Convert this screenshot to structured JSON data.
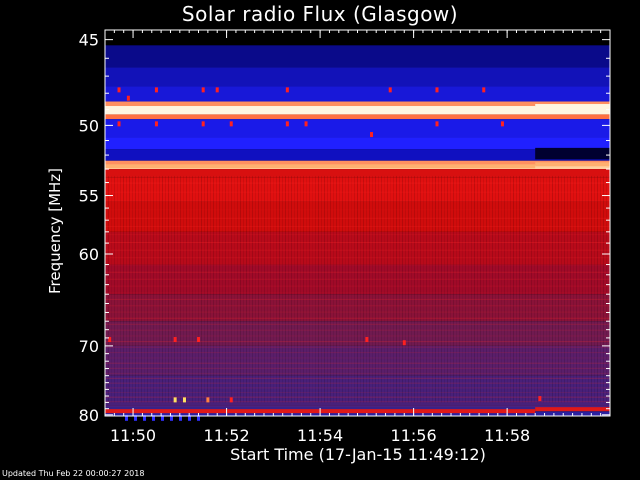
{
  "page": {
    "footer": "Updated Thu Feb 22 00:00:27 2018"
  },
  "chart_data": {
    "type": "heatmap",
    "title": "Solar radio Flux (Glasgow)",
    "xlabel": "Start Time (17-Jan-15 11:49:12)",
    "ylabel": "Frequency [MHz]",
    "x_tick_labels": [
      "11:50",
      "11:52",
      "11:54",
      "11:56",
      "11:58"
    ],
    "x_tick_minutes": [
      49.8,
      51.8,
      53.8,
      55.8,
      57.8
    ],
    "xlim_minutes": [
      49.2,
      60.0
    ],
    "y_tick_labels": [
      "45",
      "50",
      "55",
      "60",
      "70",
      "80"
    ],
    "y_tick_values": [
      45,
      50,
      55,
      60,
      70,
      80
    ],
    "ylim": [
      44.5,
      80.2
    ],
    "y_scale": "reciprocal",
    "colormap": "black-blue-red-yellow-white",
    "colors": {
      "background": "#000000",
      "deep_blue": "#04047a",
      "blue": "#1e1ef0",
      "purple": "#5a2ab0",
      "red": "#d00000",
      "bright_red": "#ff2020",
      "orange": "#ff9040",
      "white": "#fff6e0"
    },
    "bands": [
      {
        "from": 44.5,
        "to": 45.3,
        "color": "#000000"
      },
      {
        "from": 45.3,
        "to": 46.5,
        "color": "#0a0a8a"
      },
      {
        "from": 46.5,
        "to": 47.6,
        "color": "#1212b8"
      },
      {
        "from": 47.6,
        "to": 48.5,
        "color": "#1818d8"
      },
      {
        "from": 48.5,
        "to": 48.8,
        "color": "#ff9060"
      },
      {
        "from": 48.8,
        "to": 49.3,
        "color": "#fff6e0"
      },
      {
        "from": 49.3,
        "to": 49.6,
        "color": "#ff7040"
      },
      {
        "from": 49.6,
        "to": 50.8,
        "color": "#1a1ae8"
      },
      {
        "from": 50.8,
        "to": 51.6,
        "color": "#2020ff"
      },
      {
        "from": 51.6,
        "to": 52.4,
        "color": "#1010c0"
      },
      {
        "from": 52.4,
        "to": 52.7,
        "color": "#ff9060"
      },
      {
        "from": 52.7,
        "to": 53.0,
        "color": "#ffd0a0"
      },
      {
        "from": 53.0,
        "to": 53.6,
        "color": "#d81010"
      },
      {
        "from": 53.6,
        "to": 55.5,
        "color": "#e01010"
      },
      {
        "from": 55.5,
        "to": 58.0,
        "color": "#d00c0c"
      },
      {
        "from": 58.0,
        "to": 61.0,
        "color": "#b80a1a"
      },
      {
        "from": 61.0,
        "to": 64.0,
        "color": "#a00a28"
      },
      {
        "from": 64.0,
        "to": 67.0,
        "color": "#8a1238"
      },
      {
        "from": 67.0,
        "to": 70.0,
        "color": "#701a50"
      },
      {
        "from": 70.0,
        "to": 74.0,
        "color": "#5a1e6a"
      },
      {
        "from": 74.0,
        "to": 78.5,
        "color": "#48207a"
      },
      {
        "from": 78.5,
        "to": 79.5,
        "color": "#3a2288"
      },
      {
        "from": 79.5,
        "to": 80.2,
        "color": "#2a20a0"
      }
    ],
    "bright_lines": [
      {
        "freq": 48.9,
        "color": "#fff6e0"
      },
      {
        "freq": 52.8,
        "color": "#ffb070"
      },
      {
        "freq": 79.4,
        "color": "#e01818"
      }
    ],
    "shift_after_minutes": 58.4,
    "bursts": [
      {
        "t": 49.5,
        "f": 47.8,
        "color": "#ff2020"
      },
      {
        "t": 49.5,
        "f": 49.9,
        "color": "#ff2020"
      },
      {
        "t": 49.7,
        "f": 48.3,
        "color": "#ff2020"
      },
      {
        "t": 50.3,
        "f": 47.8,
        "color": "#ff2020"
      },
      {
        "t": 50.3,
        "f": 49.9,
        "color": "#ff2020"
      },
      {
        "t": 51.3,
        "f": 47.8,
        "color": "#ff2020"
      },
      {
        "t": 51.3,
        "f": 49.9,
        "color": "#ff2020"
      },
      {
        "t": 51.6,
        "f": 47.8,
        "color": "#ff2020"
      },
      {
        "t": 51.9,
        "f": 49.9,
        "color": "#ff2020"
      },
      {
        "t": 53.1,
        "f": 47.8,
        "color": "#ff2020"
      },
      {
        "t": 53.1,
        "f": 49.9,
        "color": "#ff2020"
      },
      {
        "t": 53.5,
        "f": 49.9,
        "color": "#ff2020"
      },
      {
        "t": 54.9,
        "f": 50.6,
        "color": "#ff2020"
      },
      {
        "t": 55.3,
        "f": 47.8,
        "color": "#ff2020"
      },
      {
        "t": 56.3,
        "f": 47.8,
        "color": "#ff2020"
      },
      {
        "t": 56.3,
        "f": 49.9,
        "color": "#ff2020"
      },
      {
        "t": 57.3,
        "f": 47.8,
        "color": "#ff2020"
      },
      {
        "t": 57.7,
        "f": 49.9,
        "color": "#ff2020"
      },
      {
        "t": 49.3,
        "f": 69.2,
        "color": "#ff2020"
      },
      {
        "t": 50.7,
        "f": 69.2,
        "color": "#ff2020"
      },
      {
        "t": 51.2,
        "f": 69.2,
        "color": "#ff2020"
      },
      {
        "t": 54.8,
        "f": 69.2,
        "color": "#ff2020"
      },
      {
        "t": 55.6,
        "f": 69.6,
        "color": "#ff2020"
      },
      {
        "t": 50.7,
        "f": 77.6,
        "color": "#ffe060"
      },
      {
        "t": 50.9,
        "f": 77.6,
        "color": "#ffe060"
      },
      {
        "t": 51.4,
        "f": 77.6,
        "color": "#ff8040"
      },
      {
        "t": 51.9,
        "f": 77.6,
        "color": "#ff2020"
      },
      {
        "t": 58.5,
        "f": 77.4,
        "color": "#ff2020"
      }
    ]
  }
}
